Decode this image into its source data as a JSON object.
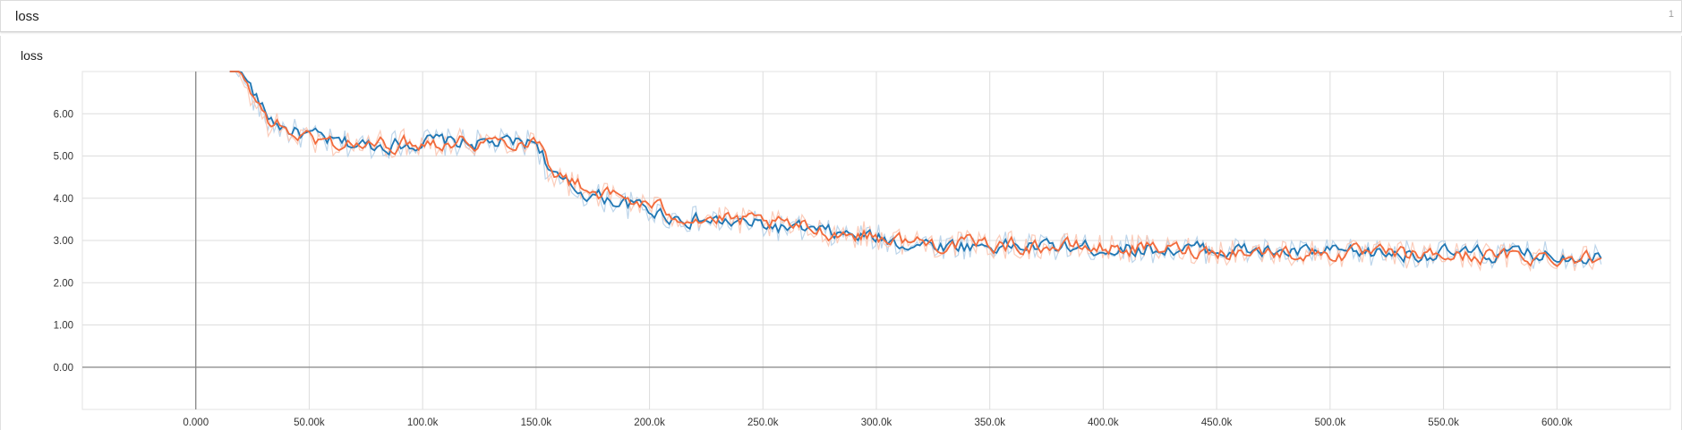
{
  "header": {
    "title": "loss",
    "count": "1"
  },
  "chart_title": "loss",
  "chart_data": {
    "type": "line",
    "title": "loss",
    "xlim": [
      -50000,
      650000
    ],
    "ylim": [
      -1,
      7
    ],
    "x_ticks": [
      0,
      50000,
      100000,
      150000,
      200000,
      250000,
      300000,
      350000,
      400000,
      450000,
      500000,
      550000,
      600000
    ],
    "x_tick_labels": [
      "0.000",
      "50.00k",
      "100.0k",
      "150.0k",
      "200.0k",
      "250.0k",
      "300.0k",
      "350.0k",
      "400.0k",
      "450.0k",
      "500.0k",
      "550.0k",
      "600.0k"
    ],
    "y_ticks": [
      0,
      1,
      2,
      3,
      4,
      5,
      6
    ],
    "y_tick_labels": [
      "0.00",
      "1.00",
      "2.00",
      "3.00",
      "4.00",
      "5.00",
      "6.00"
    ],
    "grid": true,
    "series": [
      {
        "color": "#1f77b4",
        "raw_color": "#b6d0e8",
        "x": [
          15000,
          20000,
          25000,
          30000,
          40000,
          50000,
          60000,
          75000,
          90000,
          100000,
          120000,
          140000,
          150000,
          155000,
          160000,
          175000,
          190000,
          200000,
          210000,
          225000,
          240000,
          250000,
          265000,
          280000,
          300000,
          310000,
          325000,
          340000,
          350000,
          375000,
          400000,
          425000,
          450000,
          475000,
          500000,
          525000,
          550000,
          575000,
          600000,
          620000
        ],
        "y": [
          7.2,
          6.9,
          6.4,
          5.9,
          5.6,
          5.45,
          5.3,
          5.25,
          5.3,
          5.35,
          5.3,
          5.3,
          5.35,
          4.6,
          4.3,
          4.05,
          3.85,
          3.7,
          3.55,
          3.45,
          3.4,
          3.35,
          3.25,
          3.15,
          3.05,
          2.95,
          2.9,
          2.88,
          2.88,
          2.85,
          2.82,
          2.8,
          2.78,
          2.72,
          2.7,
          2.7,
          2.68,
          2.66,
          2.65,
          2.65
        ]
      },
      {
        "color": "#f26b3c",
        "raw_color": "#fbc7b3",
        "x": [
          15000,
          20000,
          25000,
          30000,
          40000,
          50000,
          60000,
          75000,
          90000,
          100000,
          120000,
          140000,
          150000,
          155000,
          160000,
          175000,
          190000,
          200000,
          210000,
          225000,
          240000,
          250000,
          265000,
          280000,
          300000,
          310000,
          325000,
          340000,
          350000,
          375000,
          400000,
          425000,
          450000,
          475000,
          500000,
          525000,
          550000,
          575000,
          600000,
          620000
        ],
        "y": [
          7.2,
          6.85,
          6.3,
          5.85,
          5.55,
          5.4,
          5.3,
          5.25,
          5.3,
          5.35,
          5.35,
          5.35,
          5.4,
          4.75,
          4.45,
          4.15,
          3.95,
          3.8,
          3.62,
          3.5,
          3.45,
          3.4,
          3.3,
          3.2,
          3.1,
          3.0,
          2.92,
          2.9,
          2.9,
          2.86,
          2.82,
          2.8,
          2.76,
          2.72,
          2.68,
          2.66,
          2.64,
          2.62,
          2.6,
          2.6
        ]
      }
    ]
  }
}
